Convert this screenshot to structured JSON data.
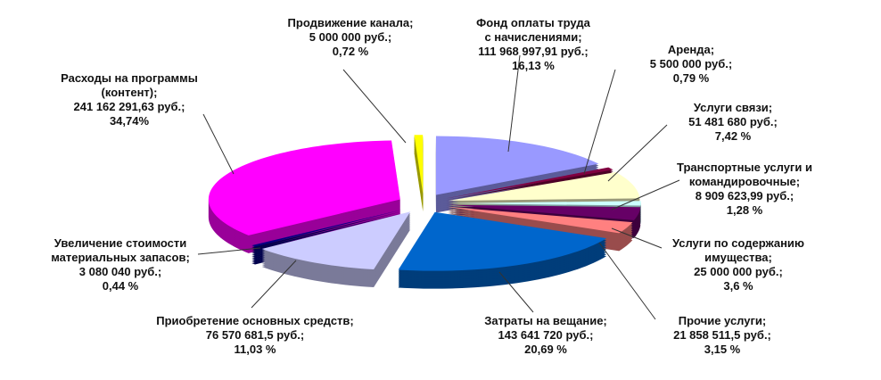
{
  "chart_data": {
    "type": "pie",
    "style": "3d-exploded",
    "currency": "руб.",
    "slices": [
      {
        "name": "Фонд оплаты труда\nс начислениями",
        "value": "111 968 997,91 руб.",
        "amount": 111968997.91,
        "percent": 16.13,
        "percent_label": "16,13 %",
        "color": "#9999ff"
      },
      {
        "name": "Аренда",
        "value": "5 500 000 руб.",
        "amount": 5500000,
        "percent": 0.79,
        "percent_label": "0,79 %",
        "color": "#800040"
      },
      {
        "name": "Услуги связи",
        "value": "51 481 680 руб.",
        "amount": 51481680,
        "percent": 7.42,
        "percent_label": "7,42 %",
        "color": "#ffffcc"
      },
      {
        "name": "Транспортные услуги и\nкомандировочные",
        "value": "8 909 623,99 руб.",
        "amount": 8909623.99,
        "percent": 1.28,
        "percent_label": "1,28 %",
        "color": "#ccffff"
      },
      {
        "name": "Услуги по содержанию\nимущества",
        "value": "25 000 000 руб.",
        "amount": 25000000,
        "percent": 3.6,
        "percent_label": "3,6 %",
        "color": "#660066"
      },
      {
        "name": "Прочие услуги",
        "value": "21 858 511,5 руб.",
        "amount": 21858511.5,
        "percent": 3.15,
        "percent_label": "3,15 %",
        "color": "#ff8080"
      },
      {
        "name": "Затраты на вещание",
        "value": "143 641 720 руб.",
        "amount": 143641720,
        "percent": 20.69,
        "percent_label": "20,69 %",
        "color": "#0066cc"
      },
      {
        "name": "Приобретение основных средств",
        "value": "76 570 681,5 руб.",
        "amount": 76570681.5,
        "percent": 11.03,
        "percent_label": "11,03 %",
        "color": "#ccccff"
      },
      {
        "name": "Увеличение стоимости\nматериальных запасов",
        "value": "3 080 040 руб.",
        "amount": 3080040,
        "percent": 0.44,
        "percent_label": "0,44 %",
        "color": "#000080"
      },
      {
        "name": "Расходы на программы\n(контент)",
        "value": "241 162 291,63 руб.",
        "amount": 241162291.63,
        "percent": 34.74,
        "percent_label": "34,74%",
        "color": "#ff00ff"
      },
      {
        "name": "Продвижение канала",
        "value": "5 000 000 руб.",
        "amount": 5000000,
        "percent": 0.72,
        "percent_label": "0,72 %",
        "color": "#ffff00"
      }
    ]
  }
}
